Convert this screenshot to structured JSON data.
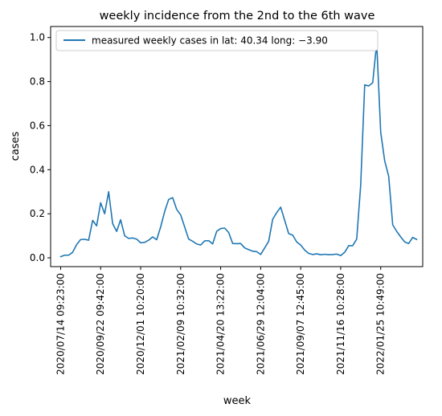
{
  "chart_data": {
    "type": "line",
    "title": "weekly incidence from the 2nd to the 6th wave",
    "xlabel": "week",
    "ylabel": "cases",
    "ylim": [
      -0.04,
      1.05
    ],
    "yticks": [
      0.0,
      0.2,
      0.4,
      0.6,
      0.8,
      1.0
    ],
    "ytick_labels": [
      "0.0",
      "0.2",
      "0.4",
      "0.6",
      "0.8",
      "1.0"
    ],
    "xticks": [
      {
        "index": 0,
        "label": "2020/07/14 09:23:00"
      },
      {
        "index": 10,
        "label": "2020/09/22 09:42:00"
      },
      {
        "index": 20,
        "label": "2020/12/01 10:20:00"
      },
      {
        "index": 30,
        "label": "2021/02/09 10:32:00"
      },
      {
        "index": 40,
        "label": "2021/04/20 13:22:00"
      },
      {
        "index": 50,
        "label": "2021/06/29 12:04:00"
      },
      {
        "index": 60,
        "label": "2021/09/07 12:45:00"
      },
      {
        "index": 70,
        "label": "2021/11/16 10:28:00"
      },
      {
        "index": 80,
        "label": "2022/01/25 10:49:00"
      }
    ],
    "xlim": [
      -2.5,
      90.5
    ],
    "legend_position": "upper-left",
    "grid": false,
    "series": [
      {
        "name": "measured weekly cases in lat: 40.34 long: −3.90",
        "color": "#1f77b4",
        "values": [
          0.005,
          0.012,
          0.012,
          0.025,
          0.06,
          0.083,
          0.084,
          0.08,
          0.17,
          0.145,
          0.25,
          0.2,
          0.3,
          0.155,
          0.12,
          0.173,
          0.1,
          0.088,
          0.09,
          0.085,
          0.068,
          0.07,
          0.08,
          0.095,
          0.082,
          0.14,
          0.21,
          0.265,
          0.273,
          0.22,
          0.195,
          0.14,
          0.085,
          0.075,
          0.063,
          0.058,
          0.077,
          0.078,
          0.063,
          0.12,
          0.133,
          0.135,
          0.115,
          0.065,
          0.064,
          0.065,
          0.045,
          0.037,
          0.03,
          0.028,
          0.015,
          0.045,
          0.075,
          0.175,
          0.205,
          0.23,
          0.17,
          0.11,
          0.103,
          0.072,
          0.058,
          0.035,
          0.02,
          0.015,
          0.018,
          0.014,
          0.016,
          0.014,
          0.015,
          0.017,
          0.01,
          0.025,
          0.055,
          0.055,
          0.085,
          0.33,
          0.785,
          0.78,
          0.795,
          0.975,
          0.57,
          0.44,
          0.37,
          0.15,
          0.12,
          0.095,
          0.072,
          0.065,
          0.093,
          0.083
        ]
      }
    ]
  }
}
